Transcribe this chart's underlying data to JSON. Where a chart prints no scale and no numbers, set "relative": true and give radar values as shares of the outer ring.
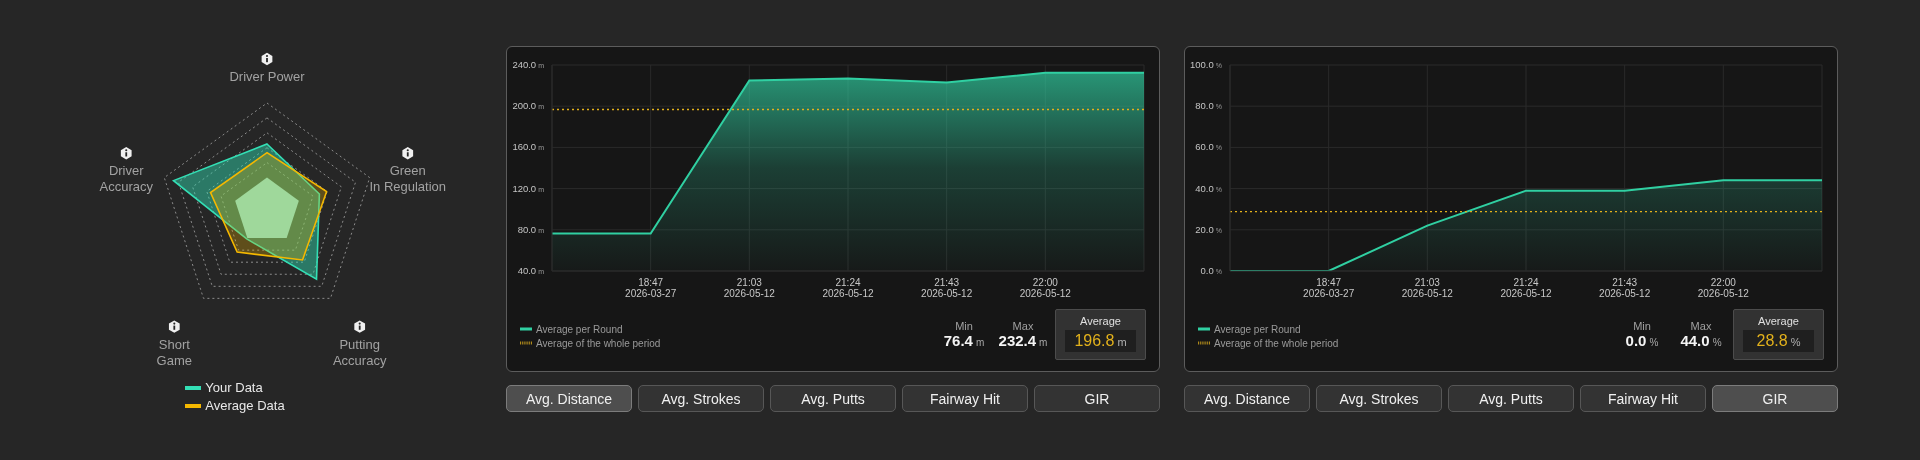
{
  "chart_data": [
    {
      "type": "radar",
      "categories": [
        "Driver Power",
        "Green\nIn Regulation",
        "Putting\nAccuracy",
        "Short\nGame",
        "Driver\nAccuracy"
      ],
      "relative": true,
      "grid": true,
      "legend": "bottom",
      "series": [
        {
          "name": "Your Data",
          "color": "#33dfb5",
          "values": [
            0.62,
            0.51,
            0.78,
            0.32,
            0.91
          ]
        },
        {
          "name": "Average Data",
          "color": "#f5b800",
          "values": [
            0.54,
            0.58,
            0.56,
            0.47,
            0.55
          ]
        }
      ]
    },
    {
      "type": "area",
      "categories": [
        null,
        "18:47\n2026-03-27",
        "21:03\n2026-05-12",
        "21:24\n2026-05-12",
        "21:43\n2026-05-12",
        "22:00\n2026-05-12",
        null
      ],
      "ylim": [
        40,
        240
      ],
      "yticks": [
        {
          "value": 40,
          "label": "40.0 m"
        },
        {
          "value": 80,
          "label": "80.0 m"
        },
        {
          "value": 120,
          "label": "120.0 m"
        },
        {
          "value": 160,
          "label": "160.0 m"
        },
        {
          "value": 200,
          "label": "200.0 m"
        },
        {
          "value": 240,
          "label": "240.0 m"
        }
      ],
      "grid": true,
      "legend": "bottom left",
      "marker": "none",
      "series": [
        {
          "name": "Average per Round",
          "type": "area",
          "color": "#30d0a2",
          "values": [
            76.4,
            76.4,
            225,
            227,
            223,
            232.4,
            232.4
          ]
        },
        {
          "name": "Average of the whole period",
          "type": "line",
          "color": "#e2b11c",
          "line_style": "dotted",
          "values": [
            196.8,
            196.8,
            196.8,
            196.8,
            196.8,
            196.8,
            196.8
          ]
        }
      ],
      "annotations": [
        "Min",
        "76.4 m",
        "Max",
        "232.4 m",
        "Average",
        "196.8 m",
        "Avg. Distance",
        "Avg. Strokes",
        "Avg. Putts",
        "Fairway Hit",
        "GIR"
      ]
    },
    {
      "type": "area",
      "categories": [
        null,
        "18:47\n2026-03-27",
        "21:03\n2026-05-12",
        "21:24\n2026-05-12",
        "21:43\n2026-05-12",
        "22:00\n2026-05-12",
        null
      ],
      "ylim": [
        0,
        100
      ],
      "yticks": [
        {
          "value": 0,
          "label": "0.0 %"
        },
        {
          "value": 20,
          "label": "20.0 %"
        },
        {
          "value": 40,
          "label": "40.0 %"
        },
        {
          "value": 60,
          "label": "60.0 %"
        },
        {
          "value": 80,
          "label": "80.0 %"
        },
        {
          "value": 100,
          "label": "100.0 %"
        }
      ],
      "grid": true,
      "legend": "bottom left",
      "marker": "none",
      "series": [
        {
          "name": "Average per Round",
          "type": "area",
          "color": "#30d0a2",
          "values": [
            0,
            0,
            22,
            39,
            39,
            44,
            44
          ]
        },
        {
          "name": "Average of the whole period",
          "type": "line",
          "color": "#e2b11c",
          "line_style": "dotted",
          "values": [
            28.8,
            28.8,
            28.8,
            28.8,
            28.8,
            28.8,
            28.8
          ]
        }
      ],
      "annotations": [
        "Min",
        "0.0 %",
        "Max",
        "44.0 %",
        "Average",
        "28.8 %",
        "Avg. Distance",
        "Avg. Strokes",
        "Avg. Putts",
        "Fairway Hit",
        "GIR"
      ]
    }
  ]
}
